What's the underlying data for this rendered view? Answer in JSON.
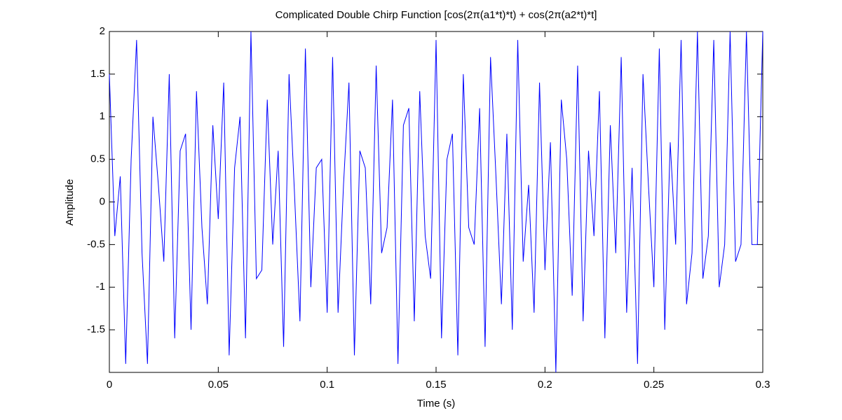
{
  "chart_data": {
    "type": "line",
    "title": "Complicated Double Chirp Function [cos(2π(a1*t)*t) + cos(2π(a2*t)*t]",
    "xlabel": "Time (s)",
    "ylabel": "Amplitude",
    "x": [
      0,
      0.0025,
      0.005,
      0.0075,
      0.01,
      0.0125,
      0.015,
      0.0175,
      0.02,
      0.0225,
      0.025,
      0.0275,
      0.03,
      0.0325,
      0.035,
      0.0375,
      0.04,
      0.0425,
      0.045,
      0.0475,
      0.05,
      0.0525,
      0.055,
      0.0575,
      0.06,
      0.0625,
      0.065,
      0.0675,
      0.07,
      0.0725,
      0.075,
      0.0775,
      0.08,
      0.0825,
      0.085,
      0.0875,
      0.09,
      0.0925,
      0.095,
      0.0975,
      0.1,
      0.1025,
      0.105,
      0.1075,
      0.11,
      0.1125,
      0.115,
      0.1175,
      0.12,
      0.1225,
      0.125,
      0.1275,
      0.13,
      0.1325,
      0.135,
      0.1375,
      0.14,
      0.1425,
      0.145,
      0.1475,
      0.15,
      0.1525,
      0.155,
      0.1575,
      0.16,
      0.1625,
      0.165,
      0.1675,
      0.17,
      0.1725,
      0.175,
      0.1775,
      0.18,
      0.1825,
      0.185,
      0.1875,
      0.19,
      0.1925,
      0.195,
      0.1975,
      0.2,
      0.2025,
      0.205,
      0.2075,
      0.21,
      0.2125,
      0.215,
      0.2175,
      0.22,
      0.2225,
      0.225,
      0.2275,
      0.23,
      0.2325,
      0.235,
      0.2375,
      0.24,
      0.2425,
      0.245,
      0.2475,
      0.25,
      0.2525,
      0.255,
      0.2575,
      0.26,
      0.2625,
      0.265,
      0.2675,
      0.27,
      0.2725,
      0.275,
      0.2775,
      0.28,
      0.2825,
      0.285,
      0.2875,
      0.29,
      0.2925,
      0.295,
      0.2975,
      0.3
    ],
    "series": [
      {
        "color": "#0000ff",
        "values": [
          1.5,
          -0.4,
          0.3,
          -1.9,
          0.5,
          1.9,
          -0.6,
          -1.9,
          1.0,
          0.2,
          -0.7,
          1.5,
          -1.6,
          0.6,
          0.8,
          -1.5,
          1.3,
          -0.3,
          -1.2,
          0.9,
          -0.2,
          1.4,
          -1.8,
          0.4,
          1.0,
          -1.6,
          2.0,
          -0.9,
          -0.8,
          1.2,
          -0.5,
          0.6,
          -1.7,
          1.5,
          0.1,
          -1.4,
          1.8,
          -1.0,
          0.4,
          0.5,
          -1.3,
          1.7,
          -1.3,
          0.2,
          1.4,
          -1.8,
          0.6,
          0.4,
          -1.2,
          1.6,
          -0.6,
          -0.3,
          1.2,
          -1.9,
          0.9,
          1.1,
          -1.4,
          1.3,
          -0.4,
          -0.9,
          1.9,
          -1.6,
          0.5,
          0.8,
          -1.8,
          1.5,
          -0.3,
          -0.5,
          1.1,
          -1.7,
          1.7,
          0.3,
          -1.2,
          0.8,
          -1.5,
          1.9,
          -0.7,
          0.2,
          -1.3,
          1.4,
          -0.8,
          0.7,
          -2.0,
          1.2,
          0.5,
          -1.1,
          1.6,
          -1.4,
          0.6,
          -0.4,
          1.3,
          -1.6,
          0.9,
          -0.6,
          1.7,
          -1.3,
          0.4,
          -1.9,
          1.5,
          0.2,
          -1.0,
          1.8,
          -1.5,
          0.7,
          -0.5,
          1.9,
          -1.2,
          -0.6,
          2.0,
          -0.9,
          -0.4,
          1.9,
          -1.0,
          -0.5,
          2.0,
          -0.7,
          -0.5,
          2.0,
          -0.5,
          -0.5,
          2.0
        ]
      }
    ],
    "xlim": [
      0,
      0.3
    ],
    "xticks": [
      0,
      0.05,
      0.1,
      0.15,
      0.2,
      0.25,
      0.3
    ],
    "ylim": [
      -2,
      2
    ],
    "yticks": [
      -1.5,
      -1,
      -0.5,
      0,
      0.5,
      1,
      1.5,
      2
    ]
  }
}
